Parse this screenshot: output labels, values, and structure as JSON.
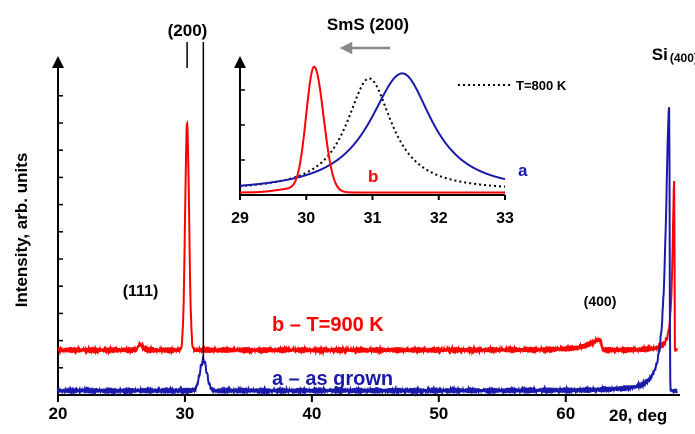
{
  "chart_data": [
    {
      "type": "line",
      "xlabel": "2θ, deg",
      "ylabel": "Intensity, arb. units",
      "xlim": [
        20,
        69
      ],
      "ylim": [
        0,
        115
      ],
      "x_ticks": [
        20,
        30,
        40,
        50,
        60
      ],
      "x_tick_labels": [
        "20",
        "30",
        "40",
        "50",
        "60"
      ],
      "y_tick_labels_shown": false,
      "grid": false,
      "series": [
        {
          "name": "b – T=900 K",
          "color": "#ff0000",
          "baseline": 15.5,
          "peaks": [
            {
              "x": 26.5,
              "height": 2.0,
              "width": 0.25
            },
            {
              "x": 30.17,
              "height": 78.0,
              "width": 0.22
            },
            {
              "x": 62.7,
              "height": 3.5,
              "width": 0.25
            },
            {
              "x": 68.55,
              "height": 59.0,
              "width": 0.04
            }
          ]
        },
        {
          "name": "a – as grown",
          "color": "#1a1aaa",
          "baseline": 1.5,
          "peaks": [
            {
              "x": 31.45,
              "height": 10.5,
              "width": 0.38
            },
            {
              "x": 68.15,
              "height": 98.0,
              "width": 0.08
            }
          ]
        }
      ],
      "annotations": [
        {
          "text": "(200)",
          "x": 30.2
        },
        {
          "text": "(111)",
          "x": 26.5
        },
        {
          "text": "(400)",
          "x": 62.7
        },
        {
          "text": "Si",
          "sub": "(400)",
          "x": 68.2
        }
      ],
      "reference_lines_x": [
        30.17,
        31.45
      ]
    },
    {
      "type": "line",
      "title": "SmS (200)",
      "xlim": [
        29,
        33
      ],
      "ylim": [
        0,
        1.05
      ],
      "x_ticks": [
        29,
        30,
        31,
        32,
        33
      ],
      "x_tick_labels": [
        "29",
        "30",
        "31",
        "32",
        "33"
      ],
      "y_tick_labels_shown": false,
      "legend": {
        "entries": [
          "T=800 K"
        ],
        "position": "top-right"
      },
      "arrow": "points left (shift to lower angle)",
      "series": [
        {
          "name": "b",
          "color": "#ff0000",
          "style": "solid",
          "peak_x": 30.12,
          "peak_y": 1.0
        },
        {
          "name": "",
          "color": "#000000",
          "style": "dotted",
          "peak_x": 30.95,
          "peak_y": 0.92
        },
        {
          "name": "a",
          "color": "#1a1aaa",
          "style": "solid",
          "peak_x": 31.45,
          "peak_y": 0.96
        }
      ]
    }
  ]
}
